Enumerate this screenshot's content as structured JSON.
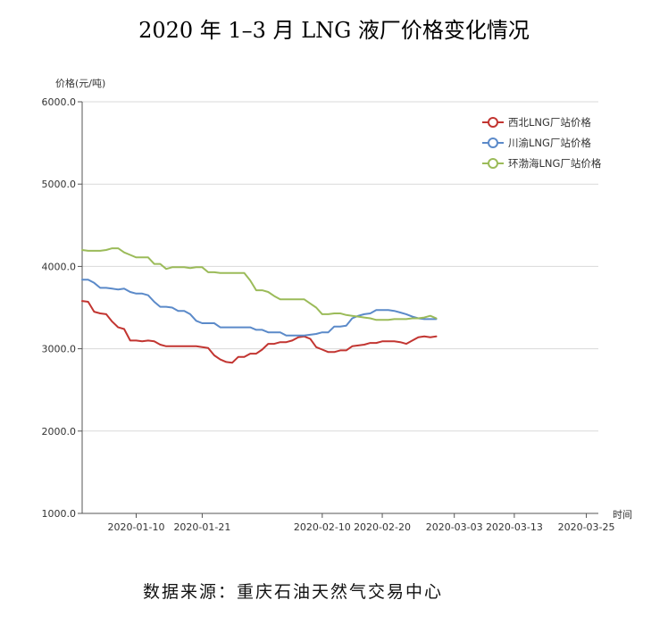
{
  "title": "2020 年 1–3 月 LNG 液厂价格变化情况",
  "source": "数据来源：重庆石油天然气交易中心",
  "chart_data": {
    "type": "line",
    "ylabel": "价格(元/吨)",
    "xlabel": "时间",
    "ylim": [
      1000,
      6000
    ],
    "yticks": [
      1000,
      2000,
      3000,
      4000,
      5000,
      6000
    ],
    "ytick_labels": [
      "1000.0",
      "2000.0",
      "3000.0",
      "4000.0",
      "5000.0",
      "6000.0"
    ],
    "x_start": "2020-01-01",
    "x_end": "2020-03-27",
    "xticks": [
      "2020-01-10",
      "2020-01-21",
      "2020-02-10",
      "2020-02-20",
      "2020-03-03",
      "2020-03-13",
      "2020-03-25"
    ],
    "grid": true,
    "legend_position": "top-right",
    "series": [
      {
        "name": "西北LNG厂站价格",
        "color": "#c23531",
        "points": [
          [
            "2020-01-01",
            3580
          ],
          [
            "2020-01-02",
            3570
          ],
          [
            "2020-01-03",
            3450
          ],
          [
            "2020-01-04",
            3430
          ],
          [
            "2020-01-05",
            3420
          ],
          [
            "2020-01-06",
            3330
          ],
          [
            "2020-01-07",
            3260
          ],
          [
            "2020-01-08",
            3240
          ],
          [
            "2020-01-09",
            3100
          ],
          [
            "2020-01-10",
            3100
          ],
          [
            "2020-01-11",
            3090
          ],
          [
            "2020-01-12",
            3100
          ],
          [
            "2020-01-13",
            3090
          ],
          [
            "2020-01-14",
            3050
          ],
          [
            "2020-01-15",
            3030
          ],
          [
            "2020-01-16",
            3030
          ],
          [
            "2020-01-17",
            3030
          ],
          [
            "2020-01-18",
            3030
          ],
          [
            "2020-01-19",
            3030
          ],
          [
            "2020-01-20",
            3030
          ],
          [
            "2020-01-21",
            3020
          ],
          [
            "2020-01-22",
            3010
          ],
          [
            "2020-01-23",
            2920
          ],
          [
            "2020-01-24",
            2870
          ],
          [
            "2020-01-25",
            2840
          ],
          [
            "2020-01-26",
            2830
          ],
          [
            "2020-01-27",
            2900
          ],
          [
            "2020-01-28",
            2900
          ],
          [
            "2020-01-29",
            2940
          ],
          [
            "2020-01-30",
            2940
          ],
          [
            "2020-01-31",
            2990
          ],
          [
            "2020-02-01",
            3060
          ],
          [
            "2020-02-02",
            3060
          ],
          [
            "2020-02-03",
            3080
          ],
          [
            "2020-02-04",
            3080
          ],
          [
            "2020-02-05",
            3100
          ],
          [
            "2020-02-06",
            3140
          ],
          [
            "2020-02-07",
            3150
          ],
          [
            "2020-02-08",
            3120
          ],
          [
            "2020-02-09",
            3020
          ],
          [
            "2020-02-10",
            2990
          ],
          [
            "2020-02-11",
            2960
          ],
          [
            "2020-02-12",
            2960
          ],
          [
            "2020-02-13",
            2980
          ],
          [
            "2020-02-14",
            2980
          ],
          [
            "2020-02-15",
            3030
          ],
          [
            "2020-02-16",
            3040
          ],
          [
            "2020-02-17",
            3050
          ],
          [
            "2020-02-18",
            3070
          ],
          [
            "2020-02-19",
            3070
          ],
          [
            "2020-02-20",
            3090
          ],
          [
            "2020-02-21",
            3090
          ],
          [
            "2020-02-22",
            3090
          ],
          [
            "2020-02-23",
            3080
          ],
          [
            "2020-02-24",
            3060
          ],
          [
            "2020-02-25",
            3100
          ],
          [
            "2020-02-26",
            3140
          ],
          [
            "2020-02-27",
            3150
          ],
          [
            "2020-02-28",
            3140
          ],
          [
            "2020-02-29",
            3150
          ]
        ]
      },
      {
        "name": "川渝LNG厂站价格",
        "color": "#5b8ac9",
        "points": [
          [
            "2020-01-01",
            3840
          ],
          [
            "2020-01-02",
            3840
          ],
          [
            "2020-01-03",
            3800
          ],
          [
            "2020-01-04",
            3740
          ],
          [
            "2020-01-05",
            3740
          ],
          [
            "2020-01-06",
            3730
          ],
          [
            "2020-01-07",
            3720
          ],
          [
            "2020-01-08",
            3730
          ],
          [
            "2020-01-09",
            3690
          ],
          [
            "2020-01-10",
            3670
          ],
          [
            "2020-01-11",
            3670
          ],
          [
            "2020-01-12",
            3650
          ],
          [
            "2020-01-13",
            3570
          ],
          [
            "2020-01-14",
            3510
          ],
          [
            "2020-01-15",
            3510
          ],
          [
            "2020-01-16",
            3500
          ],
          [
            "2020-01-17",
            3460
          ],
          [
            "2020-01-18",
            3460
          ],
          [
            "2020-01-19",
            3420
          ],
          [
            "2020-01-20",
            3340
          ],
          [
            "2020-01-21",
            3310
          ],
          [
            "2020-01-22",
            3310
          ],
          [
            "2020-01-23",
            3310
          ],
          [
            "2020-01-24",
            3260
          ],
          [
            "2020-01-25",
            3260
          ],
          [
            "2020-01-26",
            3260
          ],
          [
            "2020-01-27",
            3260
          ],
          [
            "2020-01-28",
            3260
          ],
          [
            "2020-01-29",
            3260
          ],
          [
            "2020-01-30",
            3230
          ],
          [
            "2020-01-31",
            3230
          ],
          [
            "2020-02-01",
            3200
          ],
          [
            "2020-02-02",
            3200
          ],
          [
            "2020-02-03",
            3200
          ],
          [
            "2020-02-04",
            3160
          ],
          [
            "2020-02-05",
            3160
          ],
          [
            "2020-02-06",
            3160
          ],
          [
            "2020-02-07",
            3160
          ],
          [
            "2020-02-08",
            3170
          ],
          [
            "2020-02-09",
            3180
          ],
          [
            "2020-02-10",
            3200
          ],
          [
            "2020-02-11",
            3200
          ],
          [
            "2020-02-12",
            3270
          ],
          [
            "2020-02-13",
            3270
          ],
          [
            "2020-02-14",
            3280
          ],
          [
            "2020-02-15",
            3370
          ],
          [
            "2020-02-16",
            3400
          ],
          [
            "2020-02-17",
            3420
          ],
          [
            "2020-02-18",
            3430
          ],
          [
            "2020-02-19",
            3470
          ],
          [
            "2020-02-20",
            3470
          ],
          [
            "2020-02-21",
            3470
          ],
          [
            "2020-02-22",
            3460
          ],
          [
            "2020-02-23",
            3440
          ],
          [
            "2020-02-24",
            3420
          ],
          [
            "2020-02-25",
            3390
          ],
          [
            "2020-02-26",
            3370
          ],
          [
            "2020-02-27",
            3360
          ],
          [
            "2020-02-28",
            3360
          ],
          [
            "2020-02-29",
            3360
          ]
        ]
      },
      {
        "name": "环渤海LNG厂站价格",
        "color": "#9bbb59",
        "points": [
          [
            "2020-01-01",
            4200
          ],
          [
            "2020-01-02",
            4190
          ],
          [
            "2020-01-03",
            4190
          ],
          [
            "2020-01-04",
            4190
          ],
          [
            "2020-01-05",
            4200
          ],
          [
            "2020-01-06",
            4220
          ],
          [
            "2020-01-07",
            4220
          ],
          [
            "2020-01-08",
            4170
          ],
          [
            "2020-01-09",
            4140
          ],
          [
            "2020-01-10",
            4110
          ],
          [
            "2020-01-11",
            4110
          ],
          [
            "2020-01-12",
            4110
          ],
          [
            "2020-01-13",
            4030
          ],
          [
            "2020-01-14",
            4030
          ],
          [
            "2020-01-15",
            3970
          ],
          [
            "2020-01-16",
            3990
          ],
          [
            "2020-01-17",
            3990
          ],
          [
            "2020-01-18",
            3990
          ],
          [
            "2020-01-19",
            3980
          ],
          [
            "2020-01-20",
            3990
          ],
          [
            "2020-01-21",
            3990
          ],
          [
            "2020-01-22",
            3930
          ],
          [
            "2020-01-23",
            3930
          ],
          [
            "2020-01-24",
            3920
          ],
          [
            "2020-01-25",
            3920
          ],
          [
            "2020-01-26",
            3920
          ],
          [
            "2020-01-27",
            3920
          ],
          [
            "2020-01-28",
            3920
          ],
          [
            "2020-01-29",
            3830
          ],
          [
            "2020-01-30",
            3710
          ],
          [
            "2020-01-31",
            3710
          ],
          [
            "2020-02-01",
            3690
          ],
          [
            "2020-02-02",
            3640
          ],
          [
            "2020-02-03",
            3600
          ],
          [
            "2020-02-04",
            3600
          ],
          [
            "2020-02-05",
            3600
          ],
          [
            "2020-02-06",
            3600
          ],
          [
            "2020-02-07",
            3600
          ],
          [
            "2020-02-08",
            3550
          ],
          [
            "2020-02-09",
            3500
          ],
          [
            "2020-02-10",
            3420
          ],
          [
            "2020-02-11",
            3420
          ],
          [
            "2020-02-12",
            3430
          ],
          [
            "2020-02-13",
            3430
          ],
          [
            "2020-02-14",
            3410
          ],
          [
            "2020-02-15",
            3400
          ],
          [
            "2020-02-16",
            3390
          ],
          [
            "2020-02-17",
            3380
          ],
          [
            "2020-02-18",
            3370
          ],
          [
            "2020-02-19",
            3350
          ],
          [
            "2020-02-20",
            3350
          ],
          [
            "2020-02-21",
            3350
          ],
          [
            "2020-02-22",
            3360
          ],
          [
            "2020-02-23",
            3360
          ],
          [
            "2020-02-24",
            3360
          ],
          [
            "2020-02-25",
            3370
          ],
          [
            "2020-02-26",
            3370
          ],
          [
            "2020-02-27",
            3380
          ],
          [
            "2020-02-28",
            3400
          ],
          [
            "2020-02-29",
            3370
          ]
        ]
      }
    ]
  }
}
